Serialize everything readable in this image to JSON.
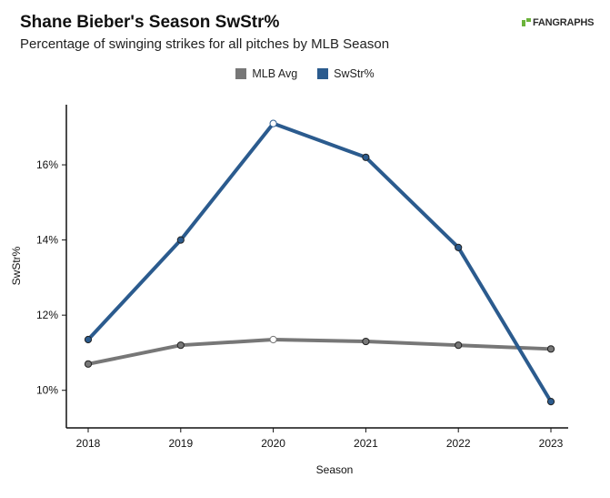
{
  "header": {
    "title": "Shane Bieber's Season SwStr%",
    "subtitle": "Percentage of swinging strikes for all pitches by MLB Season",
    "logo_text": "FANGRAPHS"
  },
  "colors": {
    "mlb_avg": "#777777",
    "swstr": "#2b5b8e",
    "logo_accent": "#6bb33b"
  },
  "chart_data": {
    "type": "line",
    "title": "Shane Bieber's Season SwStr%",
    "subtitle": "Percentage of swinging strikes for all pitches by MLB Season",
    "xlabel": "Season",
    "ylabel": "SwStr%",
    "categories": [
      "2018",
      "2019",
      "2020",
      "2021",
      "2022",
      "2023"
    ],
    "y_ticks": [
      10,
      12,
      14,
      16
    ],
    "y_tick_labels": [
      "10%",
      "12%",
      "14%",
      "16%"
    ],
    "ylim": [
      9.0,
      17.6
    ],
    "grid": false,
    "legend_position": "top-center",
    "series": [
      {
        "name": "MLB Avg",
        "color": "#777777",
        "values": [
          10.7,
          11.2,
          11.35,
          11.3,
          11.2,
          11.1
        ]
      },
      {
        "name": "SwStr%",
        "color": "#2b5b8e",
        "values": [
          11.35,
          14.0,
          17.1,
          16.2,
          13.8,
          9.7
        ]
      }
    ],
    "highlight_index": 2
  }
}
